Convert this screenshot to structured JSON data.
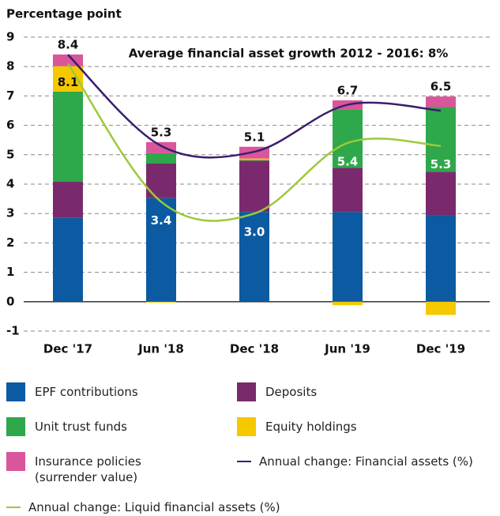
{
  "chart_data": {
    "type": "bar",
    "stacked": true,
    "y_label": "Percentage point",
    "annotation": "Average financial asset growth 2012 - 2016: 8%",
    "categories": [
      "Dec '17",
      "Jun '18",
      "Dec '18",
      "Jun '19",
      "Dec '19"
    ],
    "ylim": [
      -1,
      9
    ],
    "yticks": [
      -1,
      0,
      1,
      2,
      3,
      4,
      5,
      6,
      7,
      8,
      9
    ],
    "grid": true,
    "series": [
      {
        "name": "EPF contributions",
        "type": "bar",
        "color": "#0b5aa2",
        "values": [
          2.85,
          3.52,
          3.05,
          3.05,
          2.95
        ]
      },
      {
        "name": "Deposits",
        "type": "bar",
        "color": "#7a2a6c",
        "values": [
          1.23,
          1.18,
          1.75,
          1.5,
          1.47
        ]
      },
      {
        "name": "Unit trust funds",
        "type": "bar",
        "color": "#2ea84a",
        "values": [
          3.07,
          0.35,
          0.02,
          2.0,
          2.2
        ]
      },
      {
        "name": "Equity holdings",
        "type": "bar",
        "color": "#f5c800",
        "values": [
          0.86,
          -0.03,
          0.05,
          -0.12,
          -0.45
        ]
      },
      {
        "name": "Insurance policies (surrender value)",
        "type": "bar",
        "color": "#d9569b",
        "values": [
          0.4,
          0.38,
          0.4,
          0.3,
          0.36
        ]
      },
      {
        "name": "Annual change: Financial assets (%)",
        "type": "line",
        "color": "#3b1e6e",
        "values": [
          8.4,
          5.3,
          5.1,
          6.7,
          6.5
        ],
        "value_labels": [
          "8.4",
          "5.3",
          "5.1",
          "6.7",
          "6.5"
        ]
      },
      {
        "name": "Annual change: Liquid financial assets (%)",
        "type": "line",
        "color": "#9cc93b",
        "values": [
          8.1,
          3.4,
          3.0,
          5.4,
          5.3
        ],
        "value_labels": [
          "8.1",
          "3.4",
          "3.0",
          "5.4",
          "5.3"
        ]
      }
    ]
  }
}
